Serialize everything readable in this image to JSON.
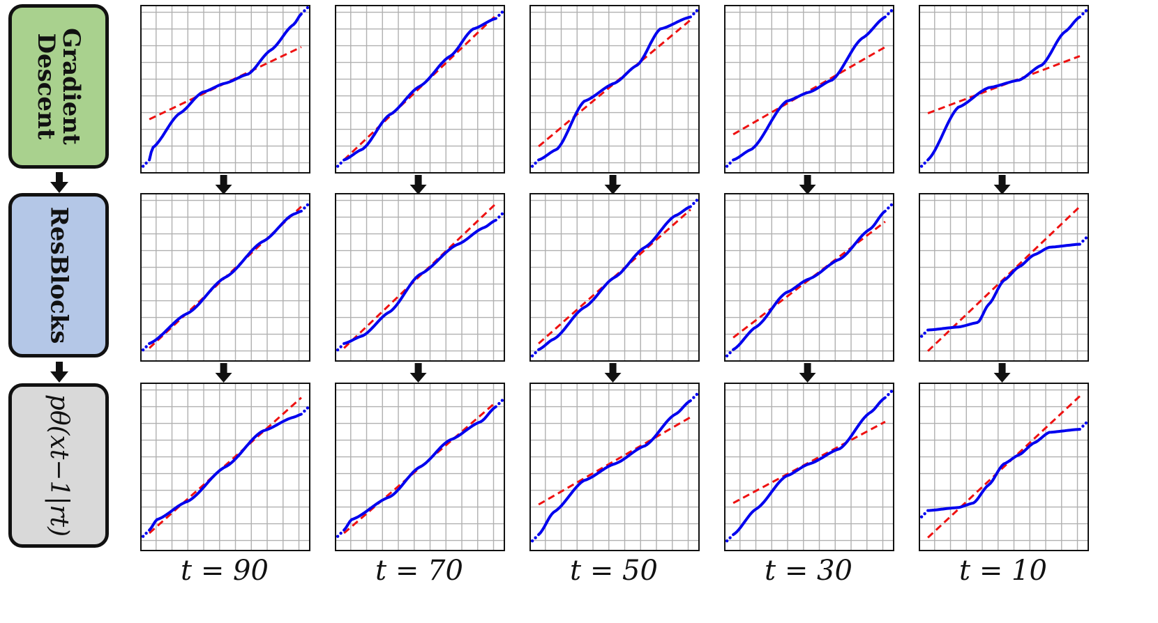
{
  "rows": [
    {
      "label_lines": [
        "Gradient",
        "Descent"
      ],
      "color": "#a9d18e",
      "style": "bold"
    },
    {
      "label_lines": [
        "ResBlocks"
      ],
      "color": "#b4c7e7",
      "style": "bold"
    },
    {
      "label_lines": [
        "pθ(xt−1|rt)"
      ],
      "color": "#d9d9d9",
      "style": "math"
    }
  ],
  "columns": [
    "t = 90",
    "t = 70",
    "t = 50",
    "t = 30",
    "t = 10"
  ],
  "colors": {
    "quantiles": "#0000ee",
    "reference": "#ee1111",
    "grid": "#b0b0b0",
    "arrow": "#111111"
  },
  "chart_data": {
    "type": "scatter",
    "layout": "3x5 grid of Q-Q plots",
    "grid": true,
    "series_legend": [
      {
        "name": "",
        "color": "#0000ee",
        "marker": "dots"
      },
      {
        "name": "",
        "color": "#ee1111",
        "linestyle": "dashed"
      }
    ],
    "panels": [
      {
        "row": 0,
        "col": 0,
        "ref": [
          [
            0.0,
            0.3
          ],
          [
            1.0,
            0.78
          ]
        ],
        "q": [
          [
            0.0,
            0.03
          ],
          [
            0.02,
            0.11
          ],
          [
            0.2,
            0.34
          ],
          [
            0.35,
            0.48
          ],
          [
            0.5,
            0.54
          ],
          [
            0.65,
            0.6
          ],
          [
            0.8,
            0.76
          ],
          [
            0.95,
            0.93
          ],
          [
            1.0,
            1.0
          ]
        ]
      },
      {
        "row": 0,
        "col": 1,
        "ref": [
          [
            0.0,
            0.03
          ],
          [
            1.0,
            0.99
          ]
        ],
        "q": [
          [
            0.0,
            0.03
          ],
          [
            0.12,
            0.1
          ],
          [
            0.3,
            0.33
          ],
          [
            0.5,
            0.52
          ],
          [
            0.7,
            0.72
          ],
          [
            0.85,
            0.9
          ],
          [
            1.0,
            0.97
          ]
        ]
      },
      {
        "row": 0,
        "col": 2,
        "ref": [
          [
            0.0,
            0.12
          ],
          [
            1.0,
            0.96
          ]
        ],
        "q": [
          [
            0.0,
            0.03
          ],
          [
            0.12,
            0.1
          ],
          [
            0.3,
            0.42
          ],
          [
            0.5,
            0.54
          ],
          [
            0.65,
            0.66
          ],
          [
            0.8,
            0.9
          ],
          [
            1.0,
            0.98
          ]
        ]
      },
      {
        "row": 0,
        "col": 3,
        "ref": [
          [
            0.0,
            0.2
          ],
          [
            1.0,
            0.78
          ]
        ],
        "q": [
          [
            0.0,
            0.03
          ],
          [
            0.12,
            0.1
          ],
          [
            0.35,
            0.42
          ],
          [
            0.5,
            0.48
          ],
          [
            0.65,
            0.56
          ],
          [
            0.85,
            0.84
          ],
          [
            1.0,
            0.98
          ]
        ]
      },
      {
        "row": 0,
        "col": 4,
        "ref": [
          [
            0.0,
            0.34
          ],
          [
            1.0,
            0.72
          ]
        ],
        "q": [
          [
            0.0,
            0.03
          ],
          [
            0.2,
            0.38
          ],
          [
            0.4,
            0.51
          ],
          [
            0.6,
            0.56
          ],
          [
            0.75,
            0.66
          ],
          [
            0.9,
            0.88
          ],
          [
            1.0,
            0.98
          ]
        ]
      },
      {
        "row": 1,
        "col": 0,
        "ref": [
          [
            0.0,
            0.03
          ],
          [
            1.0,
            0.97
          ]
        ],
        "q": [
          [
            0.0,
            0.06
          ],
          [
            0.25,
            0.26
          ],
          [
            0.5,
            0.5
          ],
          [
            0.75,
            0.74
          ],
          [
            0.95,
            0.92
          ],
          [
            1.0,
            0.94
          ]
        ]
      },
      {
        "row": 1,
        "col": 1,
        "ref": [
          [
            0.0,
            0.03
          ],
          [
            1.0,
            0.99
          ]
        ],
        "q": [
          [
            0.0,
            0.06
          ],
          [
            0.12,
            0.11
          ],
          [
            0.3,
            0.27
          ],
          [
            0.5,
            0.52
          ],
          [
            0.75,
            0.72
          ],
          [
            0.92,
            0.83
          ],
          [
            1.0,
            0.88
          ]
        ]
      },
      {
        "row": 1,
        "col": 2,
        "ref": [
          [
            0.0,
            0.06
          ],
          [
            1.0,
            0.95
          ]
        ],
        "q": [
          [
            0.0,
            0.02
          ],
          [
            0.1,
            0.09
          ],
          [
            0.3,
            0.3
          ],
          [
            0.5,
            0.5
          ],
          [
            0.7,
            0.7
          ],
          [
            0.9,
            0.91
          ],
          [
            1.0,
            0.97
          ]
        ]
      },
      {
        "row": 1,
        "col": 3,
        "ref": [
          [
            0.0,
            0.1
          ],
          [
            1.0,
            0.87
          ]
        ],
        "q": [
          [
            0.0,
            0.02
          ],
          [
            0.15,
            0.17
          ],
          [
            0.35,
            0.4
          ],
          [
            0.5,
            0.49
          ],
          [
            0.7,
            0.62
          ],
          [
            0.9,
            0.82
          ],
          [
            1.0,
            0.94
          ]
        ]
      },
      {
        "row": 1,
        "col": 4,
        "ref": [
          [
            0.0,
            0.01
          ],
          [
            1.0,
            0.97
          ]
        ],
        "q": [
          [
            0.0,
            0.15
          ],
          [
            0.2,
            0.17
          ],
          [
            0.33,
            0.2
          ],
          [
            0.4,
            0.32
          ],
          [
            0.5,
            0.48
          ],
          [
            0.6,
            0.57
          ],
          [
            0.7,
            0.65
          ],
          [
            0.8,
            0.7
          ],
          [
            1.0,
            0.72
          ]
        ]
      },
      {
        "row": 2,
        "col": 0,
        "ref": [
          [
            0.0,
            0.06
          ],
          [
            1.0,
            0.96
          ]
        ],
        "q": [
          [
            0.0,
            0.08
          ],
          [
            0.05,
            0.15
          ],
          [
            0.25,
            0.27
          ],
          [
            0.5,
            0.5
          ],
          [
            0.75,
            0.74
          ],
          [
            0.95,
            0.83
          ],
          [
            1.0,
            0.85
          ]
        ]
      },
      {
        "row": 2,
        "col": 1,
        "ref": [
          [
            0.0,
            0.06
          ],
          [
            1.0,
            0.93
          ]
        ],
        "q": [
          [
            0.0,
            0.08
          ],
          [
            0.05,
            0.15
          ],
          [
            0.3,
            0.3
          ],
          [
            0.5,
            0.5
          ],
          [
            0.7,
            0.68
          ],
          [
            0.9,
            0.8
          ],
          [
            1.0,
            0.9
          ]
        ]
      },
      {
        "row": 2,
        "col": 2,
        "ref": [
          [
            0.0,
            0.25
          ],
          [
            1.0,
            0.83
          ]
        ],
        "q": [
          [
            0.0,
            0.05
          ],
          [
            0.1,
            0.2
          ],
          [
            0.3,
            0.41
          ],
          [
            0.5,
            0.52
          ],
          [
            0.7,
            0.64
          ],
          [
            0.9,
            0.85
          ],
          [
            1.0,
            0.94
          ]
        ]
      },
      {
        "row": 2,
        "col": 3,
        "ref": [
          [
            0.0,
            0.26
          ],
          [
            1.0,
            0.8
          ]
        ],
        "q": [
          [
            0.0,
            0.05
          ],
          [
            0.15,
            0.22
          ],
          [
            0.35,
            0.44
          ],
          [
            0.5,
            0.52
          ],
          [
            0.7,
            0.62
          ],
          [
            0.9,
            0.86
          ],
          [
            1.0,
            0.96
          ]
        ]
      },
      {
        "row": 2,
        "col": 4,
        "ref": [
          [
            0.0,
            0.03
          ],
          [
            1.0,
            0.97
          ]
        ],
        "q": [
          [
            0.0,
            0.21
          ],
          [
            0.2,
            0.23
          ],
          [
            0.3,
            0.26
          ],
          [
            0.4,
            0.38
          ],
          [
            0.5,
            0.52
          ],
          [
            0.6,
            0.58
          ],
          [
            0.7,
            0.66
          ],
          [
            0.8,
            0.73
          ],
          [
            1.0,
            0.75
          ]
        ]
      }
    ]
  }
}
